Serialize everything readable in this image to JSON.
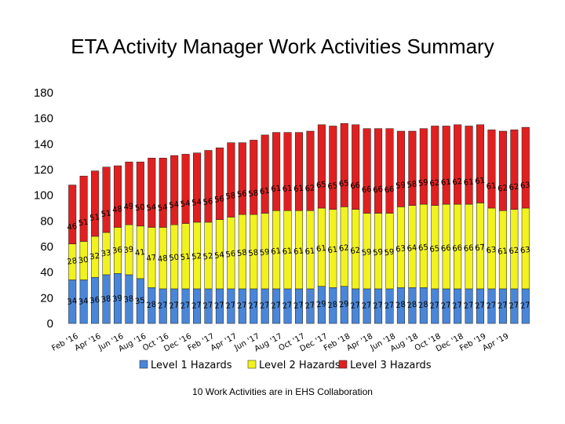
{
  "chart_data": {
    "type": "bar",
    "stacked": true,
    "title": "ETA Activity Manager Work Activities Summary",
    "note": "10 Work Activities are in EHS Collaboration",
    "ylim": [
      0,
      180
    ],
    "yticks": [
      0,
      20,
      40,
      60,
      80,
      100,
      120,
      140,
      160,
      180
    ],
    "grid": false,
    "legend_position": "bottom",
    "x_tick_labels": [
      "Feb '16",
      "Apr '16",
      "Jun '16",
      "Aug '16",
      "Oct '16",
      "Dec '16",
      "Feb '17",
      "Apr '17",
      "Jun '17",
      "Aug '17",
      "Oct '17",
      "Dec '17",
      "Feb '18",
      "Apr '18",
      "Jun '18",
      "Aug '18",
      "Oct '18",
      "Dec '18",
      "Feb '19",
      "Apr '19"
    ],
    "series": [
      {
        "name": "Level 1 Hazards",
        "color": "#4a86d8",
        "values": [
          34,
          34,
          36,
          38,
          39,
          38,
          35,
          28,
          27,
          27,
          27,
          27,
          27,
          27,
          27,
          27,
          27,
          27,
          27,
          27,
          27,
          27,
          29,
          28,
          29,
          27,
          27,
          27,
          27,
          28,
          28,
          28,
          27,
          27,
          27,
          27,
          27,
          27,
          27,
          27,
          27
        ]
      },
      {
        "name": "Level 2 Hazards",
        "color": "#f2f21e",
        "values": [
          28,
          30,
          32,
          33,
          36,
          39,
          41,
          47,
          48,
          50,
          51,
          52,
          52,
          54,
          56,
          58,
          58,
          59,
          61,
          61,
          61,
          61,
          61,
          61,
          62,
          62,
          59,
          59,
          59,
          63,
          64,
          65,
          65,
          66,
          66,
          66,
          67,
          63,
          61,
          62,
          63
        ]
      },
      {
        "name": "Level 3 Hazards",
        "color": "#e02020",
        "values": [
          46,
          51,
          51,
          51,
          48,
          49,
          50,
          54,
          54,
          54,
          54,
          54,
          56,
          56,
          58,
          56,
          58,
          61,
          61,
          61,
          61,
          62,
          65,
          65,
          65,
          66,
          66,
          66,
          66,
          59,
          58,
          59,
          62,
          61,
          62,
          61,
          61,
          61,
          62,
          62,
          63
        ]
      }
    ]
  }
}
